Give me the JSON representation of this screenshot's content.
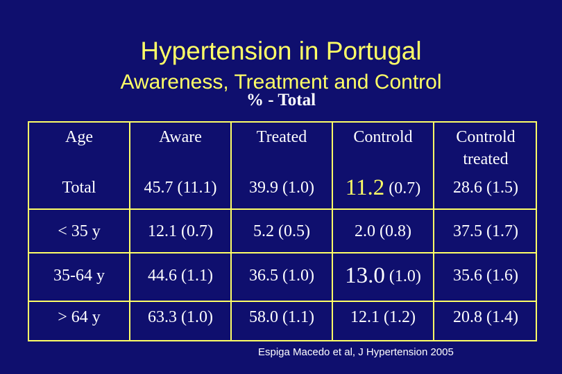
{
  "slide": {
    "title": "Hypertension in Portugal",
    "subtitle": "Awareness, Treatment and Control",
    "subsubtitle": "% - Total"
  },
  "table": {
    "headers": {
      "age": "Age",
      "aware": "Aware",
      "treated": "Treated",
      "controld": "Controld",
      "controld_treated_line1": "Controld",
      "controld_treated_line2": "treated"
    },
    "rows": {
      "total": {
        "age": "Total",
        "aware": "45.7 (11.1)",
        "treated": "39.9 (1.0)",
        "controld_value": "11.2",
        "controld_se": "(0.7)",
        "controld_treated": "28.6 (1.5)"
      },
      "under35": {
        "age": "< 35 y",
        "aware": "12.1 (0.7)",
        "treated": "5.2 (0.5)",
        "controld": "2.0 (0.8)",
        "controld_treated": "37.5 (1.7)"
      },
      "age35_64": {
        "age": "35-64 y",
        "aware": "44.6 (1.1)",
        "treated": "36.5 (1.0)",
        "controld_value": "13.0",
        "controld_se": "(1.0)",
        "controld_treated": "35.6 (1.6)"
      },
      "over64": {
        "age": "> 64 y",
        "aware": "63.3 (1.0)",
        "treated": "58.0 (1.1)",
        "controld": "12.1 (1.2)",
        "controld_treated": "20.8 (1.4)"
      }
    }
  },
  "citation": "Espiga Macedo et al, J Hypertension 2005",
  "colors": {
    "background": "#0f0f6e",
    "accent": "#ffff66",
    "text": "#ffffff"
  }
}
